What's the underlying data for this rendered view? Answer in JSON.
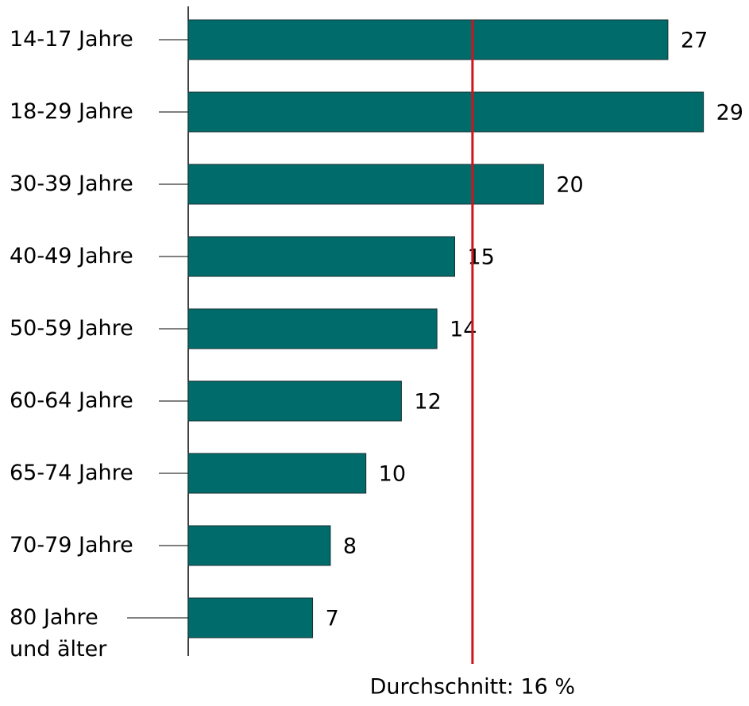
{
  "chart_data": {
    "type": "bar",
    "orientation": "horizontal",
    "categories": [
      "14-17 Jahre",
      "18-29 Jahre",
      "30-39 Jahre",
      "40-49 Jahre",
      "50-59 Jahre",
      "60-64 Jahre",
      "65-74 Jahre",
      "70-79 Jahre",
      "80 Jahre\nund älter"
    ],
    "values": [
      27,
      29,
      20,
      15,
      14,
      12,
      10,
      8,
      7
    ],
    "color": "#006b6b",
    "xlim": [
      0,
      30
    ],
    "average": {
      "value": 16,
      "label": "Durchschnitt: 16 %",
      "color": "#d0141e"
    }
  }
}
